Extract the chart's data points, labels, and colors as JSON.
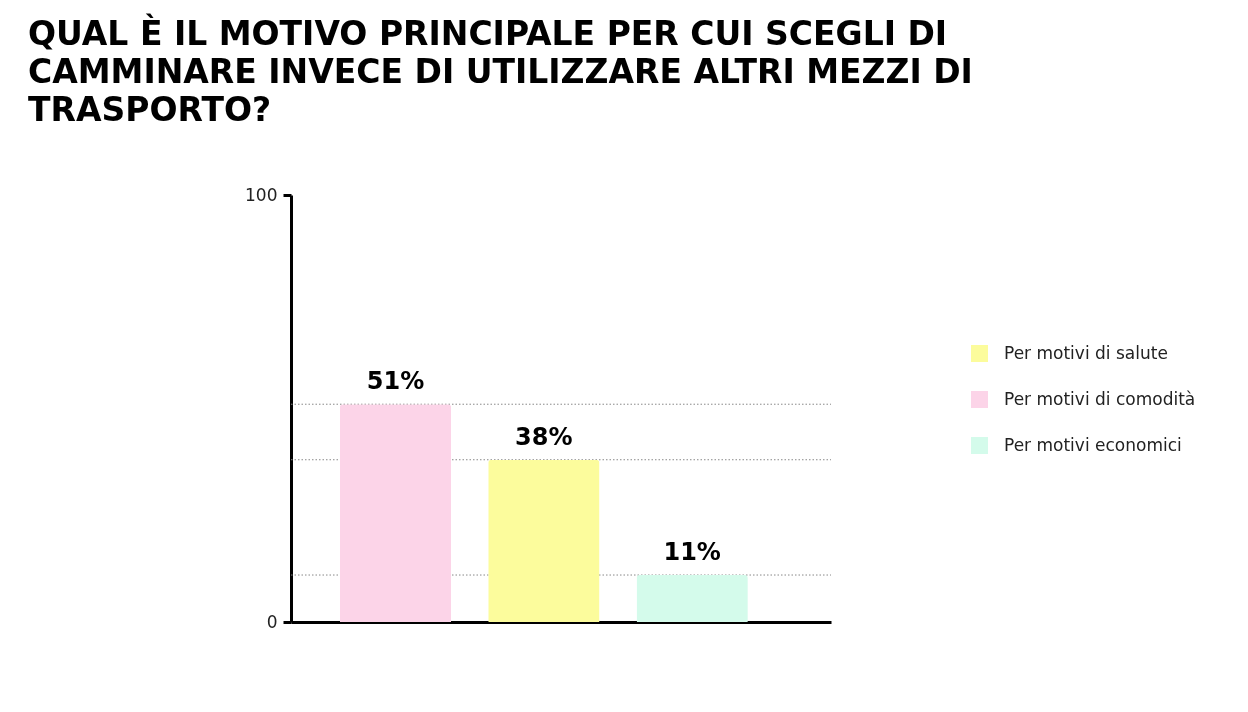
{
  "chart_data": {
    "type": "bar",
    "title": "QUAL È IL MOTIVO PRINCIPALE PER CUI SCEGLI DI CAMMINARE INVECE DI UTILIZZARE ALTRI MEZZI DI TRASPORTO?",
    "categories": [
      null,
      null,
      null
    ],
    "series": [
      {
        "name": "Per motivi di salute",
        "color": "#fcfc9c",
        "values": [
          null,
          38,
          null
        ],
        "value_labels": [
          null,
          "38%",
          null
        ]
      },
      {
        "name": "Per motivi di comodità",
        "color": "#fcd4e8",
        "values": [
          51,
          null,
          null
        ],
        "value_labels": [
          "51%",
          null,
          null
        ]
      },
      {
        "name": "Per motivi economici",
        "color": "#d4fbeb",
        "values": [
          null,
          null,
          11
        ],
        "value_labels": [
          null,
          null,
          "11%"
        ]
      }
    ],
    "ylim": [
      0,
      100
    ],
    "yticks": [
      0,
      100
    ],
    "ref_lines": [
      {
        "axis": "y",
        "value": 51,
        "color": "#888888",
        "line_style": "dotted"
      },
      {
        "axis": "y",
        "value": 38,
        "color": "#888888",
        "line_style": "dotted"
      },
      {
        "axis": "y",
        "value": 11,
        "color": "#888888",
        "line_style": "dotted"
      }
    ],
    "legend": "right",
    "tick_labels": "y"
  }
}
